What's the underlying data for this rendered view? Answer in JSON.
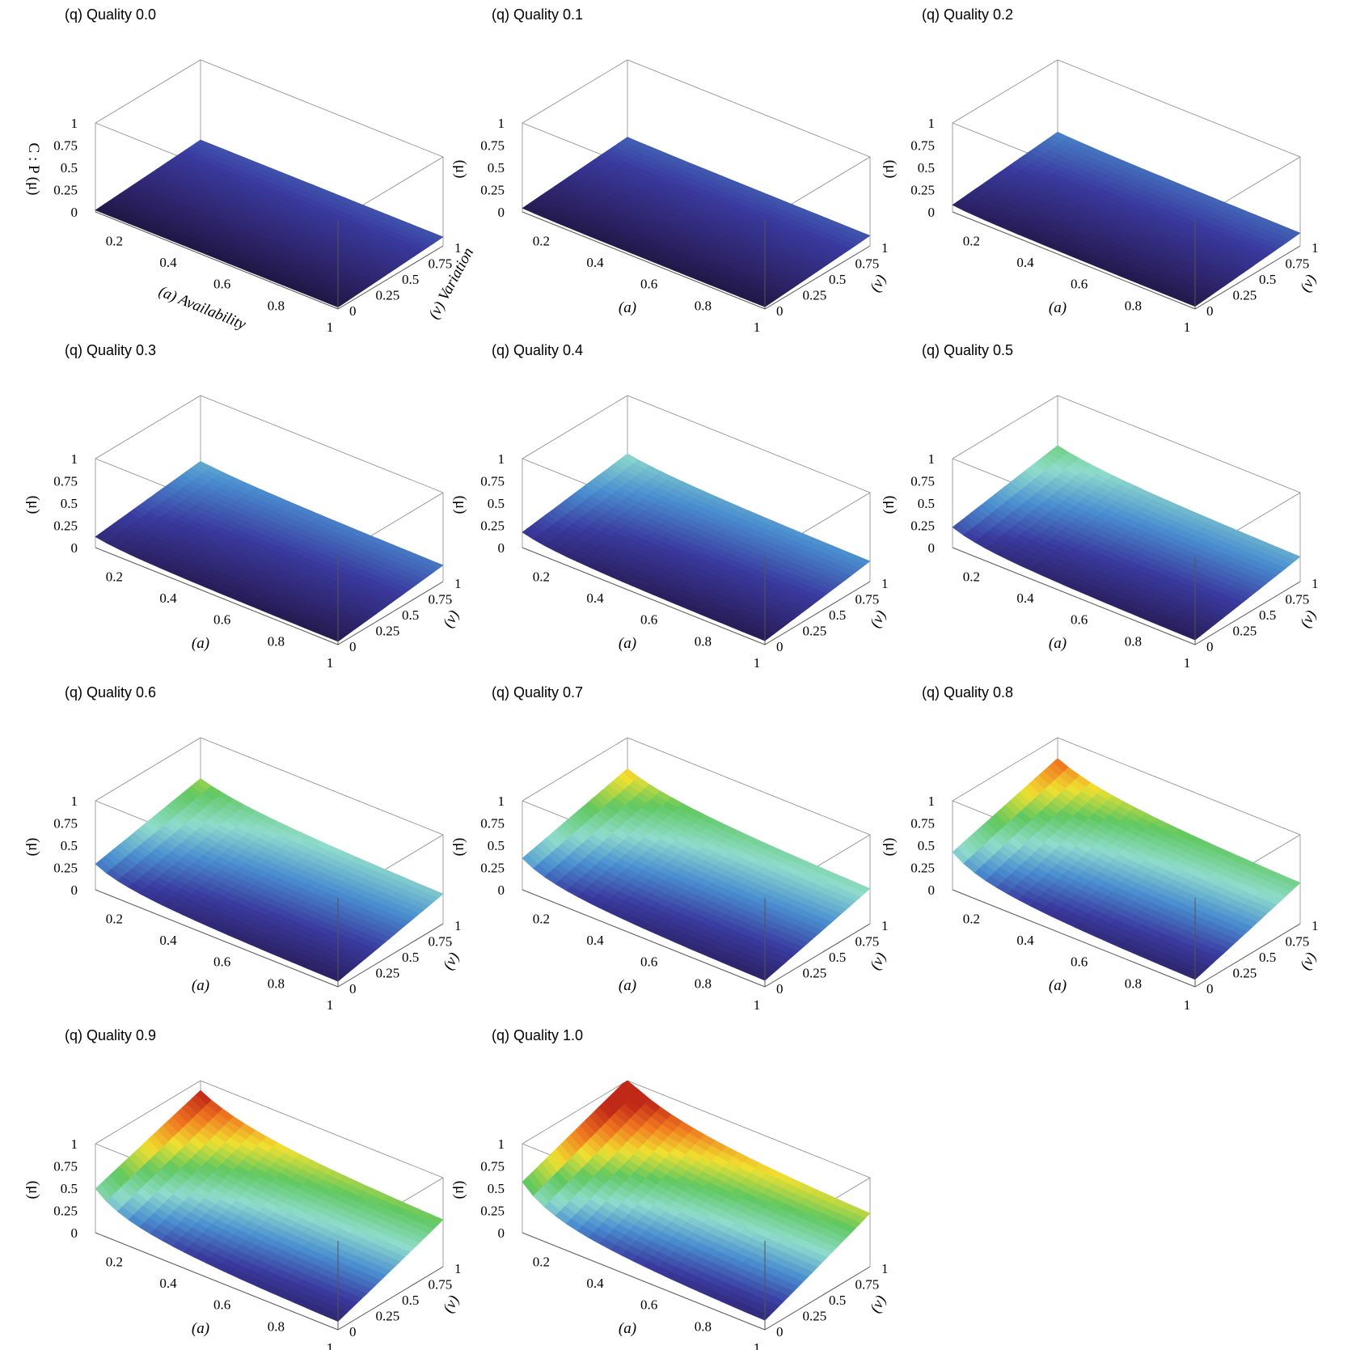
{
  "chart_data": [
    {
      "type": "surface3d",
      "title": "(q) Quality 0.0",
      "quality": 0.0,
      "zlabel": "C : P (μ)",
      "xlabel": "(a) Availability",
      "ylabel": "(v) Variation",
      "zlabel_short": "(μ)",
      "xlabel_short": "(a)",
      "ylabel_short": "(v)"
    },
    {
      "type": "surface3d",
      "title": "(q) Quality 0.1",
      "quality": 0.1,
      "zlabel": "(μ)",
      "xlabel": "(a)",
      "ylabel": "(v)"
    },
    {
      "type": "surface3d",
      "title": "(q) Quality 0.2",
      "quality": 0.2,
      "zlabel": "(μ)",
      "xlabel": "(a)",
      "ylabel": "(v)"
    },
    {
      "type": "surface3d",
      "title": "(q) Quality 0.3",
      "quality": 0.3,
      "zlabel": "(μ)",
      "xlabel": "(a)",
      "ylabel": "(v)"
    },
    {
      "type": "surface3d",
      "title": "(q) Quality 0.4",
      "quality": 0.4,
      "zlabel": "(μ)",
      "xlabel": "(a)",
      "ylabel": "(v)"
    },
    {
      "type": "surface3d",
      "title": "(q) Quality 0.5",
      "quality": 0.5,
      "zlabel": "(μ)",
      "xlabel": "(a)",
      "ylabel": "(v)"
    },
    {
      "type": "surface3d",
      "title": "(q) Quality 0.6",
      "quality": 0.6,
      "zlabel": "(μ)",
      "xlabel": "(a)",
      "ylabel": "(v)"
    },
    {
      "type": "surface3d",
      "title": "(q) Quality 0.7",
      "quality": 0.7,
      "zlabel": "(μ)",
      "xlabel": "(a)",
      "ylabel": "(v)"
    },
    {
      "type": "surface3d",
      "title": "(q) Quality 0.8",
      "quality": 0.8,
      "zlabel": "(μ)",
      "xlabel": "(a)",
      "ylabel": "(v)"
    },
    {
      "type": "surface3d",
      "title": "(q) Quality 0.9",
      "quality": 0.9,
      "zlabel": "(μ)",
      "xlabel": "(a)",
      "ylabel": "(v)"
    },
    {
      "type": "surface3d",
      "title": "(q) Quality 1.0",
      "quality": 1.0,
      "zlabel": "(μ)",
      "xlabel": "(a)",
      "ylabel": "(v)"
    }
  ],
  "axes": {
    "x_ticks": [
      "0.2",
      "0.4",
      "0.6",
      "0.8",
      "1"
    ],
    "x_tick_values": [
      0.2,
      0.4,
      0.6,
      0.8,
      1.0
    ],
    "x_range": [
      0.1,
      1.0
    ],
    "y_ticks": [
      "0",
      "0.25",
      "0.5",
      "0.75",
      "1"
    ],
    "y_tick_values": [
      0,
      0.25,
      0.5,
      0.75,
      1.0
    ],
    "y_range": [
      0,
      1
    ],
    "z_ticks": [
      "0",
      "0.25",
      "0.5",
      "0.75",
      "1"
    ],
    "z_tick_values": [
      0,
      0.25,
      0.5,
      0.75,
      1.0
    ],
    "z_range": [
      0,
      1
    ]
  },
  "colors": {
    "colormap": [
      "#0a0a14",
      "#2a1f5e",
      "#3a3a9e",
      "#4a8ed0",
      "#8fdccc",
      "#60c860",
      "#f0e030",
      "#f07820",
      "#c02818"
    ],
    "box": "#555555"
  }
}
